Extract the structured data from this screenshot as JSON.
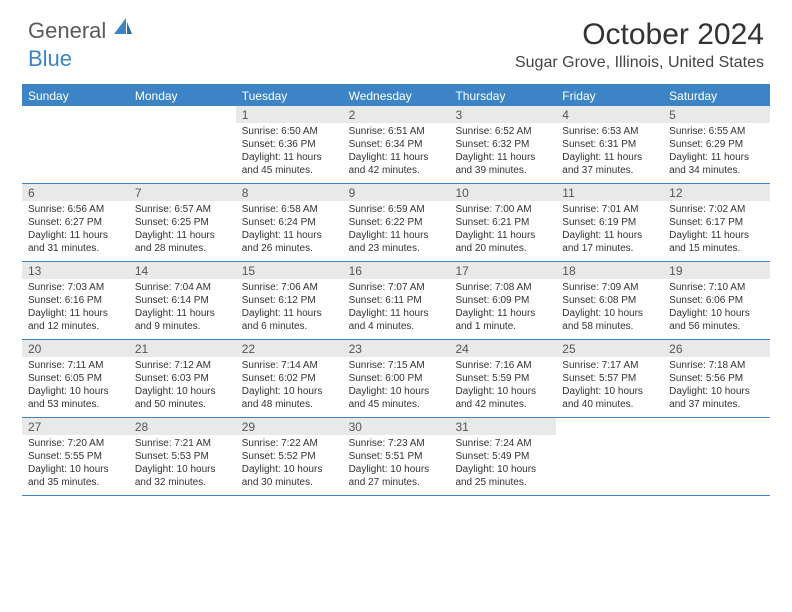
{
  "brand": {
    "word1": "General",
    "word2": "Blue"
  },
  "title": "October 2024",
  "location": "Sugar Grove, Illinois, United States",
  "colors": {
    "accent": "#3d84c6",
    "header_bg": "#3d84c6",
    "daynum_bg": "#e9e9e9"
  },
  "day_names": [
    "Sunday",
    "Monday",
    "Tuesday",
    "Wednesday",
    "Thursday",
    "Friday",
    "Saturday"
  ],
  "weeks": [
    [
      {
        "n": "",
        "lines": []
      },
      {
        "n": "",
        "lines": []
      },
      {
        "n": "1",
        "lines": [
          "Sunrise: 6:50 AM",
          "Sunset: 6:36 PM",
          "Daylight: 11 hours",
          "and 45 minutes."
        ]
      },
      {
        "n": "2",
        "lines": [
          "Sunrise: 6:51 AM",
          "Sunset: 6:34 PM",
          "Daylight: 11 hours",
          "and 42 minutes."
        ]
      },
      {
        "n": "3",
        "lines": [
          "Sunrise: 6:52 AM",
          "Sunset: 6:32 PM",
          "Daylight: 11 hours",
          "and 39 minutes."
        ]
      },
      {
        "n": "4",
        "lines": [
          "Sunrise: 6:53 AM",
          "Sunset: 6:31 PM",
          "Daylight: 11 hours",
          "and 37 minutes."
        ]
      },
      {
        "n": "5",
        "lines": [
          "Sunrise: 6:55 AM",
          "Sunset: 6:29 PM",
          "Daylight: 11 hours",
          "and 34 minutes."
        ]
      }
    ],
    [
      {
        "n": "6",
        "lines": [
          "Sunrise: 6:56 AM",
          "Sunset: 6:27 PM",
          "Daylight: 11 hours",
          "and 31 minutes."
        ]
      },
      {
        "n": "7",
        "lines": [
          "Sunrise: 6:57 AM",
          "Sunset: 6:25 PM",
          "Daylight: 11 hours",
          "and 28 minutes."
        ]
      },
      {
        "n": "8",
        "lines": [
          "Sunrise: 6:58 AM",
          "Sunset: 6:24 PM",
          "Daylight: 11 hours",
          "and 26 minutes."
        ]
      },
      {
        "n": "9",
        "lines": [
          "Sunrise: 6:59 AM",
          "Sunset: 6:22 PM",
          "Daylight: 11 hours",
          "and 23 minutes."
        ]
      },
      {
        "n": "10",
        "lines": [
          "Sunrise: 7:00 AM",
          "Sunset: 6:21 PM",
          "Daylight: 11 hours",
          "and 20 minutes."
        ]
      },
      {
        "n": "11",
        "lines": [
          "Sunrise: 7:01 AM",
          "Sunset: 6:19 PM",
          "Daylight: 11 hours",
          "and 17 minutes."
        ]
      },
      {
        "n": "12",
        "lines": [
          "Sunrise: 7:02 AM",
          "Sunset: 6:17 PM",
          "Daylight: 11 hours",
          "and 15 minutes."
        ]
      }
    ],
    [
      {
        "n": "13",
        "lines": [
          "Sunrise: 7:03 AM",
          "Sunset: 6:16 PM",
          "Daylight: 11 hours",
          "and 12 minutes."
        ]
      },
      {
        "n": "14",
        "lines": [
          "Sunrise: 7:04 AM",
          "Sunset: 6:14 PM",
          "Daylight: 11 hours",
          "and 9 minutes."
        ]
      },
      {
        "n": "15",
        "lines": [
          "Sunrise: 7:06 AM",
          "Sunset: 6:12 PM",
          "Daylight: 11 hours",
          "and 6 minutes."
        ]
      },
      {
        "n": "16",
        "lines": [
          "Sunrise: 7:07 AM",
          "Sunset: 6:11 PM",
          "Daylight: 11 hours",
          "and 4 minutes."
        ]
      },
      {
        "n": "17",
        "lines": [
          "Sunrise: 7:08 AM",
          "Sunset: 6:09 PM",
          "Daylight: 11 hours",
          "and 1 minute."
        ]
      },
      {
        "n": "18",
        "lines": [
          "Sunrise: 7:09 AM",
          "Sunset: 6:08 PM",
          "Daylight: 10 hours",
          "and 58 minutes."
        ]
      },
      {
        "n": "19",
        "lines": [
          "Sunrise: 7:10 AM",
          "Sunset: 6:06 PM",
          "Daylight: 10 hours",
          "and 56 minutes."
        ]
      }
    ],
    [
      {
        "n": "20",
        "lines": [
          "Sunrise: 7:11 AM",
          "Sunset: 6:05 PM",
          "Daylight: 10 hours",
          "and 53 minutes."
        ]
      },
      {
        "n": "21",
        "lines": [
          "Sunrise: 7:12 AM",
          "Sunset: 6:03 PM",
          "Daylight: 10 hours",
          "and 50 minutes."
        ]
      },
      {
        "n": "22",
        "lines": [
          "Sunrise: 7:14 AM",
          "Sunset: 6:02 PM",
          "Daylight: 10 hours",
          "and 48 minutes."
        ]
      },
      {
        "n": "23",
        "lines": [
          "Sunrise: 7:15 AM",
          "Sunset: 6:00 PM",
          "Daylight: 10 hours",
          "and 45 minutes."
        ]
      },
      {
        "n": "24",
        "lines": [
          "Sunrise: 7:16 AM",
          "Sunset: 5:59 PM",
          "Daylight: 10 hours",
          "and 42 minutes."
        ]
      },
      {
        "n": "25",
        "lines": [
          "Sunrise: 7:17 AM",
          "Sunset: 5:57 PM",
          "Daylight: 10 hours",
          "and 40 minutes."
        ]
      },
      {
        "n": "26",
        "lines": [
          "Sunrise: 7:18 AM",
          "Sunset: 5:56 PM",
          "Daylight: 10 hours",
          "and 37 minutes."
        ]
      }
    ],
    [
      {
        "n": "27",
        "lines": [
          "Sunrise: 7:20 AM",
          "Sunset: 5:55 PM",
          "Daylight: 10 hours",
          "and 35 minutes."
        ]
      },
      {
        "n": "28",
        "lines": [
          "Sunrise: 7:21 AM",
          "Sunset: 5:53 PM",
          "Daylight: 10 hours",
          "and 32 minutes."
        ]
      },
      {
        "n": "29",
        "lines": [
          "Sunrise: 7:22 AM",
          "Sunset: 5:52 PM",
          "Daylight: 10 hours",
          "and 30 minutes."
        ]
      },
      {
        "n": "30",
        "lines": [
          "Sunrise: 7:23 AM",
          "Sunset: 5:51 PM",
          "Daylight: 10 hours",
          "and 27 minutes."
        ]
      },
      {
        "n": "31",
        "lines": [
          "Sunrise: 7:24 AM",
          "Sunset: 5:49 PM",
          "Daylight: 10 hours",
          "and 25 minutes."
        ]
      },
      {
        "n": "",
        "lines": []
      },
      {
        "n": "",
        "lines": []
      }
    ]
  ]
}
